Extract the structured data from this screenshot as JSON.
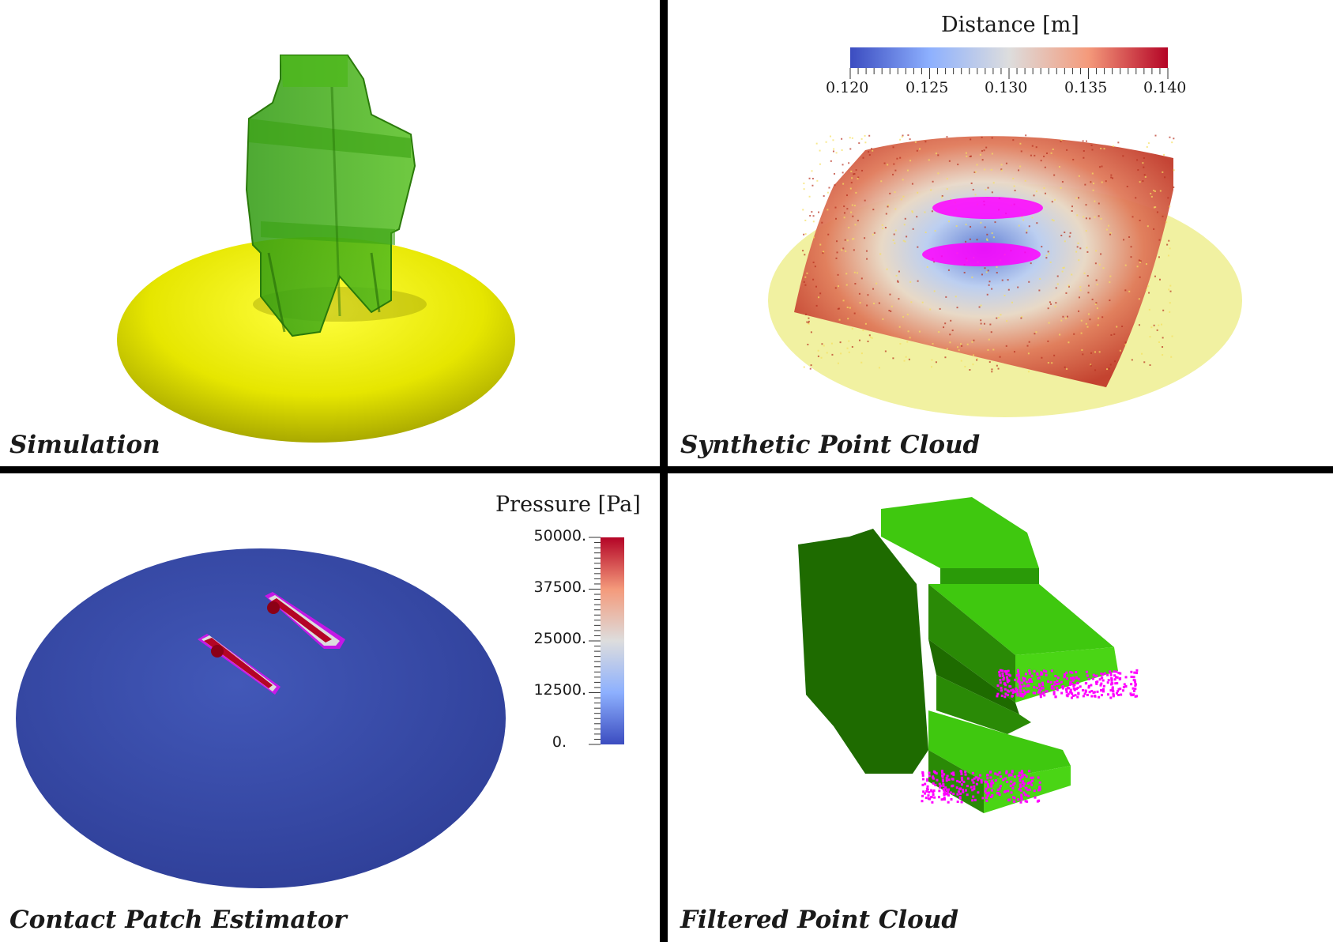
{
  "panels": {
    "top_left": {
      "caption": "Simulation"
    },
    "top_right": {
      "caption": "Synthetic Point Cloud",
      "colorbar": {
        "title": "Distance [m]",
        "ticks": [
          "0.120",
          "0.125",
          "0.130",
          "0.135",
          "0.140"
        ],
        "colors": {
          "low": "#3b4cc0",
          "mid": "#dddddd",
          "high": "#b40426"
        }
      }
    },
    "bottom_left": {
      "caption": "Contact Patch Estimator",
      "colorbar": {
        "title": "Pressure [Pa]",
        "ticks": [
          "50000.",
          "37500.",
          "25000.",
          "12500.",
          "0."
        ],
        "colors": {
          "low": "#3b4cc0",
          "mid": "#dddddd",
          "high": "#b40426"
        }
      }
    },
    "bottom_right": {
      "caption": "Filtered Point Cloud"
    }
  },
  "colors": {
    "tire_yellow": "#e6e600",
    "green_body": "#3fc80f",
    "points_magenta": "#ff00ff",
    "pressure_blue": "#3a4fa8"
  }
}
